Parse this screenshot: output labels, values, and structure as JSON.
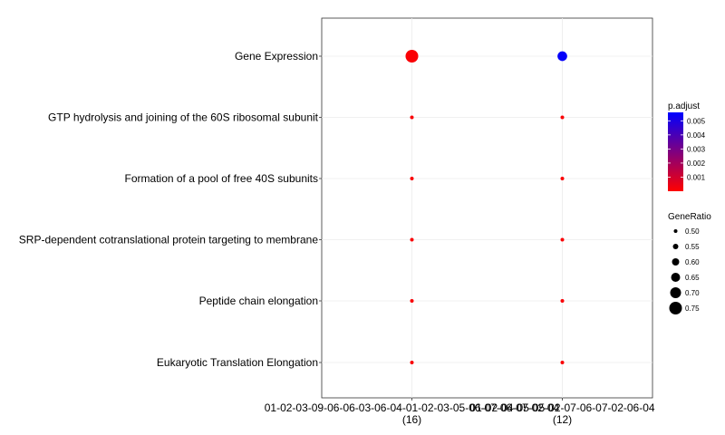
{
  "chart_data": {
    "type": "scatter",
    "categories": [
      "Gene Expression",
      "GTP hydrolysis and joining of the 60S ribosomal subunit",
      "Formation of a pool of free 40S subunits",
      "SRP-dependent cotranslational protein targeting to membrane",
      "Peptide chain elongation",
      "Eukaryotic Translation Elongation"
    ],
    "groups": [
      {
        "label": "01-02-03-09-06-06-03-06-04-01-02-03-05-06-07-06-07-02-04",
        "count": "(16)"
      },
      {
        "label": "01-02-04-05-05-02-07-06-07-02-06-04",
        "count": "(12)"
      }
    ],
    "points": [
      {
        "group": 0,
        "category": 0,
        "gene_ratio": 0.75,
        "p_adjust": 0.0001
      },
      {
        "group": 0,
        "category": 1,
        "gene_ratio": 0.5,
        "p_adjust": 0.0001
      },
      {
        "group": 0,
        "category": 2,
        "gene_ratio": 0.5,
        "p_adjust": 0.0001
      },
      {
        "group": 0,
        "category": 3,
        "gene_ratio": 0.5,
        "p_adjust": 0.0001
      },
      {
        "group": 0,
        "category": 4,
        "gene_ratio": 0.5,
        "p_adjust": 0.0001
      },
      {
        "group": 0,
        "category": 5,
        "gene_ratio": 0.5,
        "p_adjust": 0.0001
      },
      {
        "group": 1,
        "category": 0,
        "gene_ratio": 0.667,
        "p_adjust": 0.0055
      },
      {
        "group": 1,
        "category": 1,
        "gene_ratio": 0.5,
        "p_adjust": 0.0001
      },
      {
        "group": 1,
        "category": 2,
        "gene_ratio": 0.5,
        "p_adjust": 0.0001
      },
      {
        "group": 1,
        "category": 3,
        "gene_ratio": 0.5,
        "p_adjust": 0.0001
      },
      {
        "group": 1,
        "category": 4,
        "gene_ratio": 0.5,
        "p_adjust": 0.0001
      },
      {
        "group": 1,
        "category": 5,
        "gene_ratio": 0.5,
        "p_adjust": 0.0001
      }
    ],
    "legend_color": {
      "title": "p.adjust",
      "ticks": [
        "0.005",
        "0.004",
        "0.003",
        "0.002",
        "0.001"
      ],
      "tick_values": [
        0.005,
        0.004,
        0.003,
        0.002,
        0.001
      ],
      "range": [
        0.0,
        0.0056
      ],
      "low_color": "#ff0000",
      "high_color": "#0000ff"
    },
    "legend_size": {
      "title": "GeneRatio",
      "ticks": [
        "0.50",
        "0.55",
        "0.60",
        "0.65",
        "0.70",
        "0.75"
      ],
      "tick_values": [
        0.5,
        0.55,
        0.6,
        0.65,
        0.7,
        0.75
      ]
    },
    "grid": true,
    "legend_position": "right"
  }
}
